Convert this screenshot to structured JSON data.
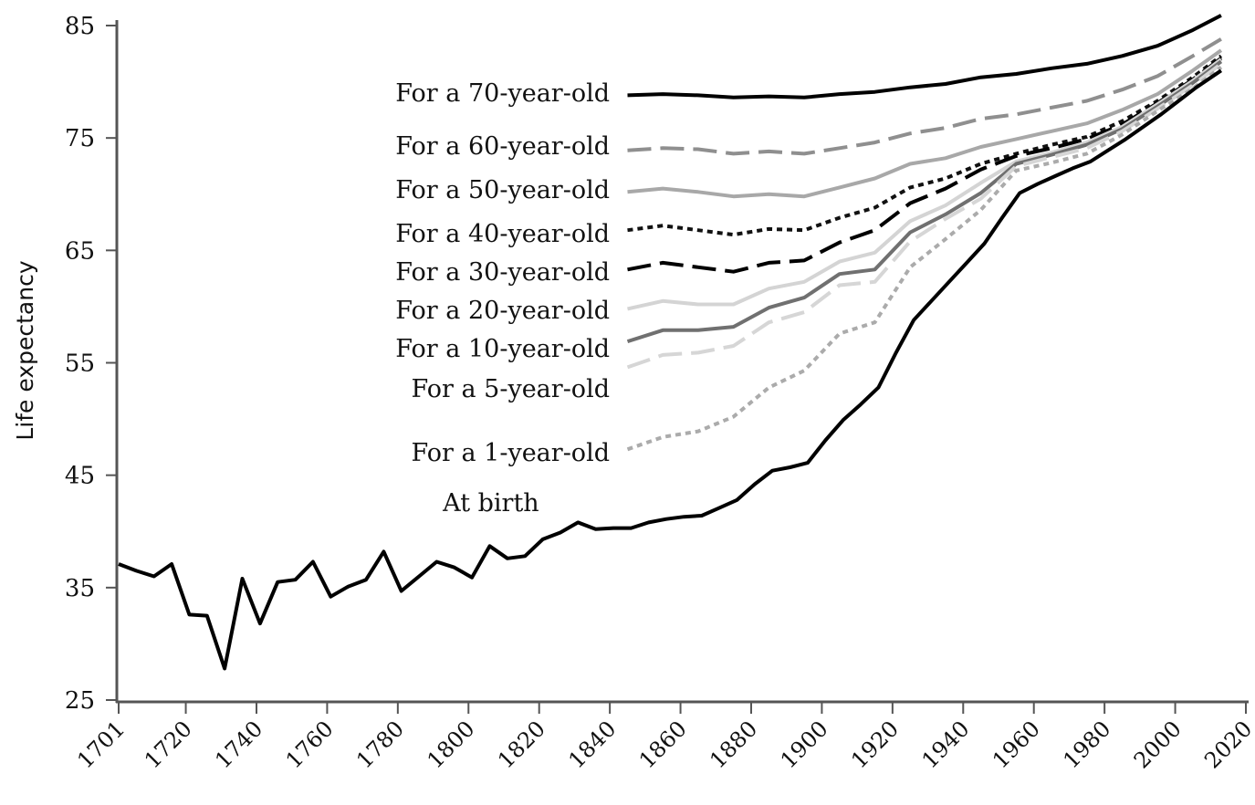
{
  "chart_data": {
    "type": "line",
    "title": "",
    "xlabel": "",
    "ylabel": "Life expectancy",
    "xlim": [
      1701,
      2020
    ],
    "ylim": [
      25,
      85
    ],
    "xticks": [
      1701,
      1720,
      1740,
      1760,
      1780,
      1800,
      1820,
      1840,
      1860,
      1880,
      1900,
      1920,
      1940,
      1960,
      1980,
      2000,
      2020
    ],
    "yticks": [
      25,
      35,
      45,
      55,
      65,
      75,
      85
    ],
    "grid": false,
    "legend": "inline labels",
    "series": [
      {
        "name": "For a 70-year-old",
        "color": "#000000",
        "dash": "",
        "width": 4,
        "x": [
          1845,
          1855,
          1865,
          1875,
          1885,
          1895,
          1905,
          1915,
          1925,
          1935,
          1945,
          1955,
          1965,
          1975,
          1985,
          1995,
          2005,
          2013
        ],
        "y": [
          78.8,
          78.9,
          78.8,
          78.6,
          78.7,
          78.6,
          78.9,
          79.1,
          79.5,
          79.8,
          80.4,
          80.7,
          81.2,
          81.6,
          82.3,
          83.2,
          84.6,
          85.9
        ]
      },
      {
        "name": "For a 60-year-old",
        "color": "#8f8f8f",
        "dash": "26 10",
        "width": 4,
        "x": [
          1845,
          1855,
          1865,
          1875,
          1885,
          1895,
          1905,
          1915,
          1925,
          1935,
          1945,
          1955,
          1965,
          1975,
          1985,
          1995,
          2005,
          2013
        ],
        "y": [
          73.9,
          74.1,
          74.0,
          73.6,
          73.8,
          73.6,
          74.1,
          74.6,
          75.4,
          75.9,
          76.7,
          77.1,
          77.7,
          78.3,
          79.3,
          80.5,
          82.3,
          83.8
        ]
      },
      {
        "name": "For a 50-year-old",
        "color": "#a8a8a8",
        "dash": "",
        "width": 4,
        "x": [
          1845,
          1855,
          1865,
          1875,
          1885,
          1895,
          1905,
          1915,
          1925,
          1935,
          1945,
          1955,
          1965,
          1975,
          1985,
          1995,
          2005,
          2013
        ],
        "y": [
          70.2,
          70.5,
          70.2,
          69.8,
          70.0,
          69.8,
          70.6,
          71.4,
          72.7,
          73.2,
          74.2,
          74.9,
          75.6,
          76.3,
          77.5,
          78.9,
          81.0,
          82.8
        ]
      },
      {
        "name": "For a 40-year-old",
        "color": "#111111",
        "dash": "6 5",
        "width": 4,
        "x": [
          1845,
          1855,
          1865,
          1875,
          1885,
          1895,
          1905,
          1915,
          1925,
          1935,
          1945,
          1955,
          1965,
          1975,
          1985,
          1995,
          2005,
          2013
        ],
        "y": [
          66.8,
          67.2,
          66.8,
          66.4,
          66.9,
          66.8,
          67.9,
          68.8,
          70.6,
          71.4,
          72.7,
          73.6,
          74.4,
          75.1,
          76.5,
          78.3,
          80.4,
          82.3
        ]
      },
      {
        "name": "For a 30-year-old",
        "color": "#000000",
        "dash": "26 10",
        "width": 4,
        "x": [
          1845,
          1855,
          1865,
          1875,
          1885,
          1895,
          1905,
          1915,
          1925,
          1935,
          1945,
          1955,
          1965,
          1975,
          1985,
          1995,
          2005,
          2013
        ],
        "y": [
          63.3,
          63.9,
          63.5,
          63.1,
          63.9,
          64.1,
          65.7,
          66.8,
          69.2,
          70.5,
          72.2,
          73.4,
          74.1,
          74.9,
          76.2,
          78.1,
          80.2,
          82.1
        ]
      },
      {
        "name": "For a 20-year-old",
        "color": "#d4d4d4",
        "dash": "",
        "width": 4,
        "x": [
          1845,
          1855,
          1865,
          1875,
          1885,
          1895,
          1905,
          1915,
          1925,
          1935,
          1945,
          1955,
          1965,
          1975,
          1985,
          1995,
          2005,
          2013
        ],
        "y": [
          59.8,
          60.5,
          60.2,
          60.2,
          61.6,
          62.2,
          64.0,
          64.8,
          67.6,
          69.0,
          71.0,
          72.9,
          73.7,
          74.6,
          76.0,
          78.0,
          80.1,
          82.0
        ]
      },
      {
        "name": "For a 10-year-old",
        "color": "#707070",
        "dash": "",
        "width": 4,
        "x": [
          1845,
          1855,
          1865,
          1875,
          1885,
          1895,
          1905,
          1915,
          1925,
          1935,
          1945,
          1955,
          1965,
          1975,
          1985,
          1995,
          2005,
          2013
        ],
        "y": [
          56.9,
          57.9,
          57.9,
          58.2,
          59.9,
          60.8,
          62.9,
          63.3,
          66.6,
          68.2,
          70.1,
          72.7,
          73.5,
          74.4,
          75.8,
          77.8,
          79.9,
          81.8
        ]
      },
      {
        "name": "For a 5-year-old",
        "color": "#d6d6d6",
        "dash": "26 10",
        "width": 4,
        "x": [
          1845,
          1855,
          1865,
          1875,
          1885,
          1895,
          1905,
          1915,
          1925,
          1935,
          1945,
          1955,
          1965,
          1975,
          1985,
          1995,
          2005,
          2013
        ],
        "y": [
          54.6,
          55.7,
          55.9,
          56.5,
          58.6,
          59.5,
          61.9,
          62.2,
          65.8,
          67.8,
          69.6,
          72.5,
          73.3,
          74.1,
          75.6,
          77.6,
          79.7,
          81.6
        ]
      },
      {
        "name": "For a 1-year-old",
        "color": "#ababab",
        "dash": "6 5",
        "width": 4,
        "x": [
          1845,
          1855,
          1865,
          1875,
          1885,
          1895,
          1905,
          1915,
          1925,
          1935,
          1945,
          1955,
          1965,
          1975,
          1985,
          1995,
          2005,
          2013
        ],
        "y": [
          47.3,
          48.4,
          48.9,
          50.2,
          52.8,
          54.3,
          57.6,
          58.6,
          63.5,
          66.0,
          68.6,
          72.1,
          72.8,
          73.6,
          75.3,
          77.4,
          79.4,
          81.3
        ]
      },
      {
        "name": "At birth",
        "color": "#000000",
        "dash": "",
        "width": 4,
        "x": [
          1701,
          1706,
          1711,
          1716,
          1721,
          1726,
          1731,
          1736,
          1741,
          1746,
          1751,
          1756,
          1761,
          1766,
          1771,
          1776,
          1781,
          1786,
          1791,
          1796,
          1801,
          1806,
          1811,
          1816,
          1821,
          1826,
          1831,
          1836,
          1841,
          1846,
          1851,
          1856,
          1861,
          1866,
          1871,
          1876,
          1881,
          1886,
          1891,
          1896,
          1901,
          1906,
          1911,
          1916,
          1921,
          1926,
          1931,
          1936,
          1941,
          1946,
          1951,
          1956,
          1961,
          1966,
          1971,
          1976,
          1981,
          1986,
          1991,
          1996,
          2001,
          2006,
          2013
        ],
        "y": [
          37.1,
          36.5,
          36.0,
          37.1,
          32.6,
          32.5,
          27.8,
          35.8,
          31.8,
          35.5,
          35.7,
          37.3,
          34.2,
          35.1,
          35.7,
          38.2,
          34.7,
          36.0,
          37.3,
          36.8,
          35.9,
          38.7,
          37.6,
          37.8,
          39.3,
          39.9,
          40.8,
          40.2,
          40.3,
          40.3,
          40.8,
          41.1,
          41.3,
          41.4,
          42.1,
          42.8,
          44.2,
          45.4,
          45.7,
          46.1,
          48.1,
          49.9,
          51.3,
          52.8,
          55.9,
          58.8,
          60.5,
          62.2,
          63.9,
          65.6,
          67.9,
          70.1,
          70.9,
          71.6,
          72.3,
          72.9,
          73.9,
          74.9,
          76.0,
          77.1,
          78.3,
          79.5,
          81.0
        ]
      }
    ],
    "labels": [
      {
        "text": "For a 70-year-old",
        "series": 0
      },
      {
        "text": "For a 60-year-old",
        "series": 1
      },
      {
        "text": "For a 50-year-old",
        "series": 2
      },
      {
        "text": "For a 40-year-old",
        "series": 3
      },
      {
        "text": "For a 30-year-old",
        "series": 4
      },
      {
        "text": "For a 20-year-old",
        "series": 5
      },
      {
        "text": "For a 10-year-old",
        "series": 6
      },
      {
        "text": "For a 5-year-old",
        "series": 7
      },
      {
        "text": "For a 1-year-old",
        "series": 8
      },
      {
        "text": "At birth",
        "series": 9
      }
    ]
  }
}
